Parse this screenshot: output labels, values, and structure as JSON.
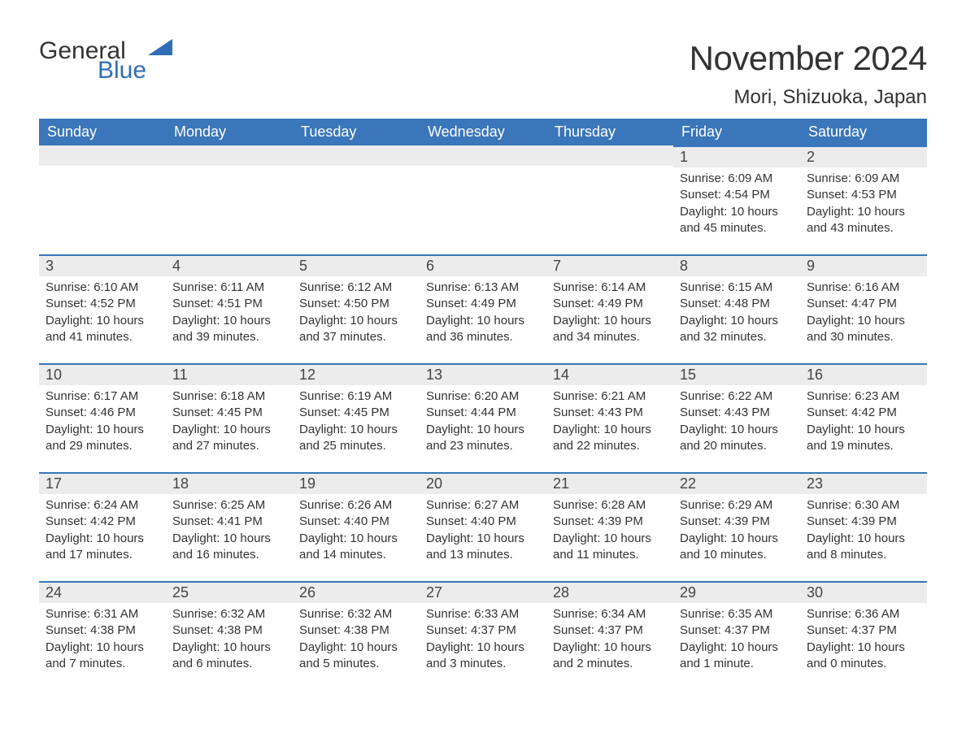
{
  "logo": {
    "word1": "General",
    "word2": "Blue",
    "shape_color": "#2f6eb5",
    "text_color_dark": "#333333",
    "text_color_blue": "#2f6eb5"
  },
  "title": "November 2024",
  "location": "Mori, Shizuoka, Japan",
  "colors": {
    "header_bg": "#3a76b9",
    "header_text": "#ffffff",
    "daynum_bg": "#ececec",
    "daynum_border": "#3a76b9",
    "body_text": "#333333",
    "page_bg": "#ffffff"
  },
  "typography": {
    "title_fontsize": 42,
    "location_fontsize": 24,
    "header_cell_fontsize": 18,
    "daynum_fontsize": 18,
    "body_fontsize": 15,
    "logo_fontsize": 30
  },
  "weekdays": [
    "Sunday",
    "Monday",
    "Tuesday",
    "Wednesday",
    "Thursday",
    "Friday",
    "Saturday"
  ],
  "labels": {
    "sunrise": "Sunrise",
    "sunset": "Sunset",
    "daylight": "Daylight"
  },
  "weeks": [
    [
      null,
      null,
      null,
      null,
      null,
      {
        "d": "1",
        "sunrise": "6:09 AM",
        "sunset": "4:54 PM",
        "daylight": "10 hours and 45 minutes."
      },
      {
        "d": "2",
        "sunrise": "6:09 AM",
        "sunset": "4:53 PM",
        "daylight": "10 hours and 43 minutes."
      }
    ],
    [
      {
        "d": "3",
        "sunrise": "6:10 AM",
        "sunset": "4:52 PM",
        "daylight": "10 hours and 41 minutes."
      },
      {
        "d": "4",
        "sunrise": "6:11 AM",
        "sunset": "4:51 PM",
        "daylight": "10 hours and 39 minutes."
      },
      {
        "d": "5",
        "sunrise": "6:12 AM",
        "sunset": "4:50 PM",
        "daylight": "10 hours and 37 minutes."
      },
      {
        "d": "6",
        "sunrise": "6:13 AM",
        "sunset": "4:49 PM",
        "daylight": "10 hours and 36 minutes."
      },
      {
        "d": "7",
        "sunrise": "6:14 AM",
        "sunset": "4:49 PM",
        "daylight": "10 hours and 34 minutes."
      },
      {
        "d": "8",
        "sunrise": "6:15 AM",
        "sunset": "4:48 PM",
        "daylight": "10 hours and 32 minutes."
      },
      {
        "d": "9",
        "sunrise": "6:16 AM",
        "sunset": "4:47 PM",
        "daylight": "10 hours and 30 minutes."
      }
    ],
    [
      {
        "d": "10",
        "sunrise": "6:17 AM",
        "sunset": "4:46 PM",
        "daylight": "10 hours and 29 minutes."
      },
      {
        "d": "11",
        "sunrise": "6:18 AM",
        "sunset": "4:45 PM",
        "daylight": "10 hours and 27 minutes."
      },
      {
        "d": "12",
        "sunrise": "6:19 AM",
        "sunset": "4:45 PM",
        "daylight": "10 hours and 25 minutes."
      },
      {
        "d": "13",
        "sunrise": "6:20 AM",
        "sunset": "4:44 PM",
        "daylight": "10 hours and 23 minutes."
      },
      {
        "d": "14",
        "sunrise": "6:21 AM",
        "sunset": "4:43 PM",
        "daylight": "10 hours and 22 minutes."
      },
      {
        "d": "15",
        "sunrise": "6:22 AM",
        "sunset": "4:43 PM",
        "daylight": "10 hours and 20 minutes."
      },
      {
        "d": "16",
        "sunrise": "6:23 AM",
        "sunset": "4:42 PM",
        "daylight": "10 hours and 19 minutes."
      }
    ],
    [
      {
        "d": "17",
        "sunrise": "6:24 AM",
        "sunset": "4:42 PM",
        "daylight": "10 hours and 17 minutes."
      },
      {
        "d": "18",
        "sunrise": "6:25 AM",
        "sunset": "4:41 PM",
        "daylight": "10 hours and 16 minutes."
      },
      {
        "d": "19",
        "sunrise": "6:26 AM",
        "sunset": "4:40 PM",
        "daylight": "10 hours and 14 minutes."
      },
      {
        "d": "20",
        "sunrise": "6:27 AM",
        "sunset": "4:40 PM",
        "daylight": "10 hours and 13 minutes."
      },
      {
        "d": "21",
        "sunrise": "6:28 AM",
        "sunset": "4:39 PM",
        "daylight": "10 hours and 11 minutes."
      },
      {
        "d": "22",
        "sunrise": "6:29 AM",
        "sunset": "4:39 PM",
        "daylight": "10 hours and 10 minutes."
      },
      {
        "d": "23",
        "sunrise": "6:30 AM",
        "sunset": "4:39 PM",
        "daylight": "10 hours and 8 minutes."
      }
    ],
    [
      {
        "d": "24",
        "sunrise": "6:31 AM",
        "sunset": "4:38 PM",
        "daylight": "10 hours and 7 minutes."
      },
      {
        "d": "25",
        "sunrise": "6:32 AM",
        "sunset": "4:38 PM",
        "daylight": "10 hours and 6 minutes."
      },
      {
        "d": "26",
        "sunrise": "6:32 AM",
        "sunset": "4:38 PM",
        "daylight": "10 hours and 5 minutes."
      },
      {
        "d": "27",
        "sunrise": "6:33 AM",
        "sunset": "4:37 PM",
        "daylight": "10 hours and 3 minutes."
      },
      {
        "d": "28",
        "sunrise": "6:34 AM",
        "sunset": "4:37 PM",
        "daylight": "10 hours and 2 minutes."
      },
      {
        "d": "29",
        "sunrise": "6:35 AM",
        "sunset": "4:37 PM",
        "daylight": "10 hours and 1 minute."
      },
      {
        "d": "30",
        "sunrise": "6:36 AM",
        "sunset": "4:37 PM",
        "daylight": "10 hours and 0 minutes."
      }
    ]
  ]
}
